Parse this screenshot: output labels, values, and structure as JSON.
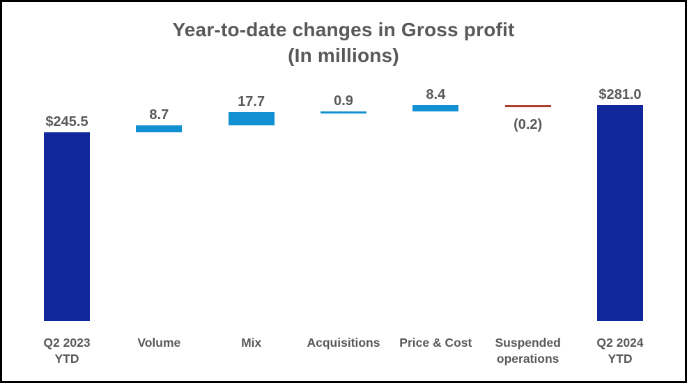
{
  "title": {
    "line1": "Year-to-date changes in Gross profit",
    "line2": "(In millions)"
  },
  "colors": {
    "total_bar": "#10289C",
    "increase_bar": "#1190D2",
    "decrease_bar": "#A9422F",
    "label_text": "#595959",
    "frame_border": "#000000",
    "background": "#FFFFFF"
  },
  "chart_data": {
    "type": "bar",
    "subtype": "waterfall",
    "title": "Year-to-date changes in Gross profit (In millions)",
    "xlabel": "",
    "ylabel": "",
    "grid": false,
    "legend": false,
    "axis_lines": false,
    "baseline_value": 0,
    "categories": [
      "Q2 2023 YTD",
      "Volume",
      "Mix",
      "Acquisitions",
      "Price & Cost",
      "Suspended operations",
      "Q2 2024 YTD"
    ],
    "steps": [
      {
        "label_lines": [
          "Q2 2023",
          "YTD"
        ],
        "value": 245.5,
        "display": "$245.5",
        "kind": "total"
      },
      {
        "label_lines": [
          "Volume"
        ],
        "value": 8.7,
        "display": "8.7",
        "kind": "increase"
      },
      {
        "label_lines": [
          "Mix"
        ],
        "value": 17.7,
        "display": "17.7",
        "kind": "increase"
      },
      {
        "label_lines": [
          "Acquisitions"
        ],
        "value": 0.9,
        "display": "0.9",
        "kind": "increase"
      },
      {
        "label_lines": [
          "Price & Cost"
        ],
        "value": 8.4,
        "display": "8.4",
        "kind": "increase"
      },
      {
        "label_lines": [
          "Suspended",
          "operations"
        ],
        "value": -0.2,
        "display": "(0.2)",
        "kind": "decrease"
      },
      {
        "label_lines": [
          "Q2 2024",
          "YTD"
        ],
        "value": 281.0,
        "display": "$281.0",
        "kind": "total"
      }
    ]
  }
}
